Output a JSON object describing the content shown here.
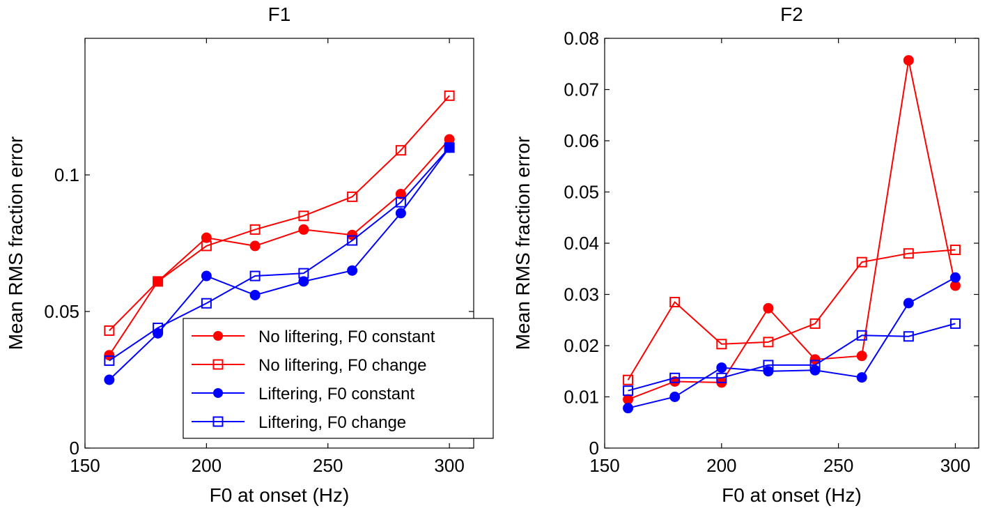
{
  "chart_data": [
    {
      "type": "line",
      "title": "F1",
      "xlabel": "F0 at onset (Hz)",
      "ylabel": "Mean RMS fraction error",
      "xlim": [
        150,
        310
      ],
      "ylim": [
        0,
        0.15
      ],
      "xticks": [
        150,
        200,
        250,
        300
      ],
      "xtick_labels": [
        "150",
        "200",
        "250",
        "300"
      ],
      "yticks": [
        0,
        0.05,
        0.1
      ],
      "ytick_labels": [
        "0",
        "0.05",
        "0.1"
      ],
      "grid": false,
      "legend": "bottom-right",
      "x": [
        160,
        180,
        200,
        220,
        240,
        260,
        280,
        300
      ],
      "series": [
        {
          "name": "No liftering, F0 constant",
          "color": "#ff0000",
          "marker": "filled-circle",
          "values": [
            0.034,
            0.061,
            0.077,
            0.074,
            0.08,
            0.078,
            0.093,
            0.113
          ]
        },
        {
          "name": "No liftering, F0 change",
          "color": "#ff0000",
          "marker": "open-square",
          "values": [
            0.043,
            0.061,
            0.074,
            0.08,
            0.085,
            0.092,
            0.109,
            0.129
          ]
        },
        {
          "name": "Liftering, F0 constant",
          "color": "#0000ff",
          "marker": "filled-circle",
          "values": [
            0.025,
            0.042,
            0.063,
            0.056,
            0.061,
            0.065,
            0.086,
            0.11
          ]
        },
        {
          "name": "Liftering, F0 change",
          "color": "#0000ff",
          "marker": "open-square",
          "values": [
            0.032,
            0.044,
            0.053,
            0.063,
            0.064,
            0.076,
            0.09,
            0.11
          ]
        }
      ]
    },
    {
      "type": "line",
      "title": "F2",
      "xlabel": "F0 at onset (Hz)",
      "ylabel": "Mean RMS fraction error",
      "xlim": [
        150,
        310
      ],
      "ylim": [
        0,
        0.08
      ],
      "xticks": [
        150,
        200,
        250,
        300
      ],
      "xtick_labels": [
        "150",
        "200",
        "250",
        "300"
      ],
      "yticks": [
        0,
        0.01,
        0.02,
        0.03,
        0.04,
        0.05,
        0.06,
        0.07,
        0.08
      ],
      "ytick_labels": [
        "0",
        "0.01",
        "0.02",
        "0.03",
        "0.04",
        "0.05",
        "0.06",
        "0.07",
        "0.08"
      ],
      "grid": false,
      "x": [
        160,
        180,
        200,
        220,
        240,
        260,
        280,
        300
      ],
      "series": [
        {
          "name": "No liftering, F0 constant",
          "color": "#ff0000",
          "marker": "filled-circle",
          "values": [
            0.0095,
            0.013,
            0.0128,
            0.0273,
            0.0173,
            0.018,
            0.0757,
            0.0317
          ]
        },
        {
          "name": "No liftering, F0 change",
          "color": "#ff0000",
          "marker": "open-square",
          "values": [
            0.0133,
            0.0285,
            0.0203,
            0.0207,
            0.0243,
            0.0363,
            0.038,
            0.0387
          ]
        },
        {
          "name": "Liftering, F0 constant",
          "color": "#0000ff",
          "marker": "filled-circle",
          "values": [
            0.0078,
            0.01,
            0.0157,
            0.015,
            0.0152,
            0.0138,
            0.0283,
            0.0333
          ]
        },
        {
          "name": "Liftering, F0 change",
          "color": "#0000ff",
          "marker": "open-square",
          "values": [
            0.0112,
            0.0137,
            0.0137,
            0.0162,
            0.0162,
            0.022,
            0.0218,
            0.0243
          ]
        }
      ]
    }
  ]
}
